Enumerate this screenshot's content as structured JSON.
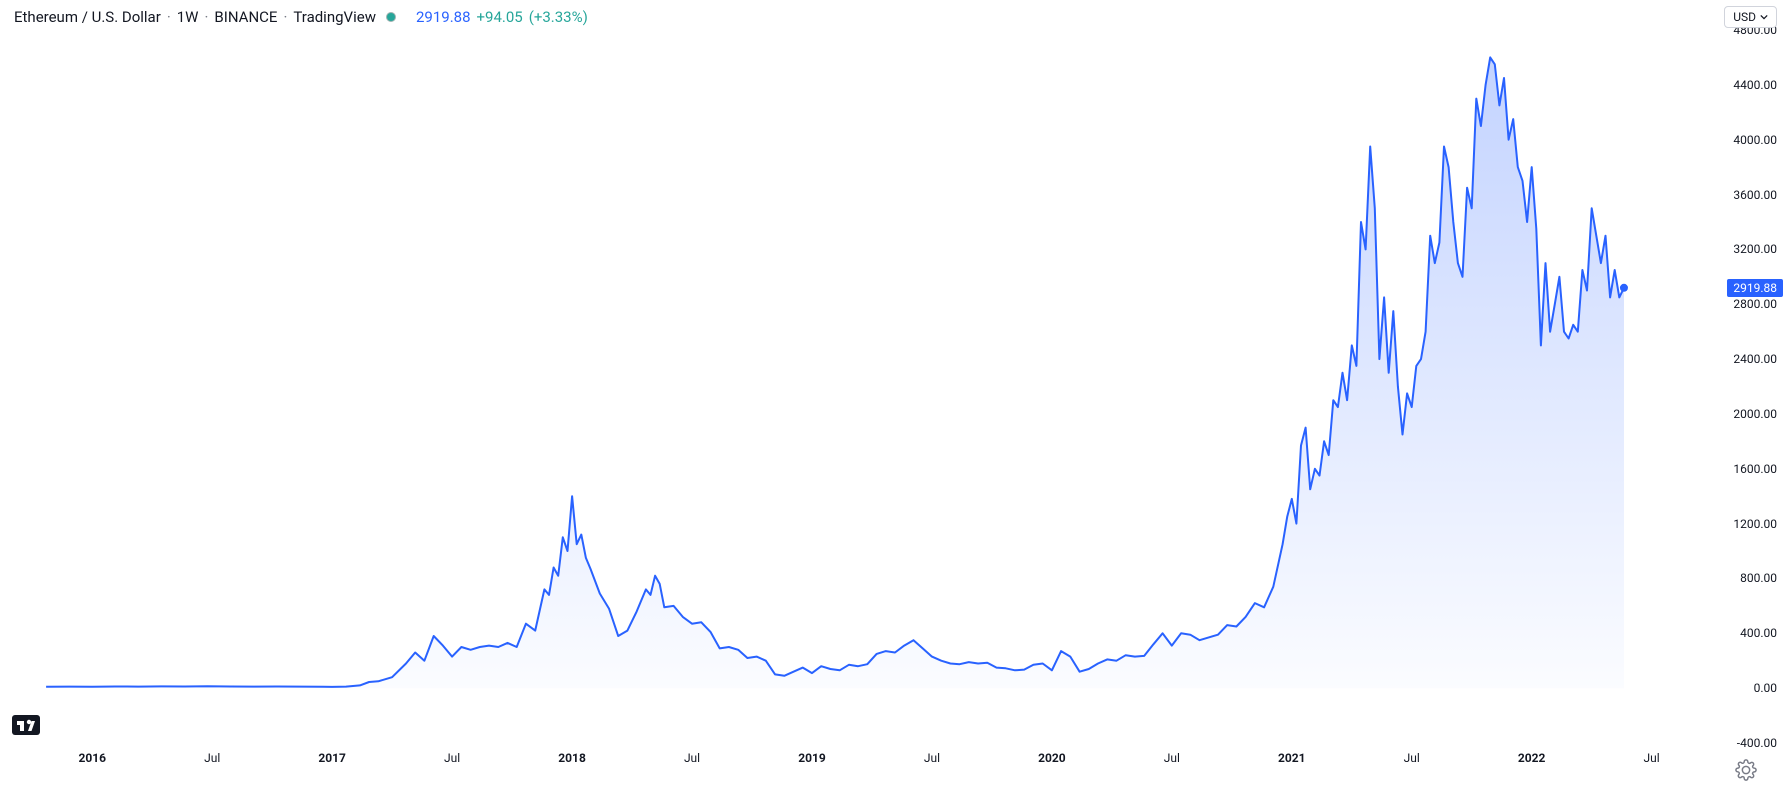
{
  "header": {
    "symbol": "Ethereum / U.S. Dollar",
    "interval": "1W",
    "exchange": "BINANCE",
    "provider": "TradingView",
    "price": "2919.88",
    "change_abs": "+94.05",
    "change_pct": "(+3.33%)"
  },
  "currency_selector": {
    "value": "USD"
  },
  "logo_text": "1⁄7",
  "chart": {
    "type": "area",
    "line_color": "#2962ff",
    "line_width": 2,
    "fill_top_color": "rgba(41,98,255,0.28)",
    "fill_bottom_color": "rgba(41,98,255,0.02)",
    "background_color": "#ffffff",
    "current_marker_color": "#2962ff",
    "current_price": 2919.88,
    "y_axis": {
      "min": -400,
      "max": 4800,
      "ticks": [
        4800.0,
        4400.0,
        4000.0,
        3600.0,
        3200.0,
        2800.0,
        2400.0,
        2000.0,
        1600.0,
        1200.0,
        800.0,
        400.0,
        0.0,
        -400.0
      ],
      "price_tag": "2919.88",
      "label_color": "#131722",
      "label_fontsize": 12
    },
    "x_axis": {
      "min": 0,
      "max": 370,
      "ticks": [
        {
          "pos": 20,
          "label": "2016",
          "bold": true
        },
        {
          "pos": 46,
          "label": "Jul",
          "bold": false
        },
        {
          "pos": 72,
          "label": "2017",
          "bold": true
        },
        {
          "pos": 98,
          "label": "Jul",
          "bold": false
        },
        {
          "pos": 124,
          "label": "2018",
          "bold": true
        },
        {
          "pos": 150,
          "label": "Jul",
          "bold": false
        },
        {
          "pos": 176,
          "label": "2019",
          "bold": true
        },
        {
          "pos": 202,
          "label": "Jul",
          "bold": false
        },
        {
          "pos": 228,
          "label": "2020",
          "bold": true
        },
        {
          "pos": 254,
          "label": "Jul",
          "bold": false
        },
        {
          "pos": 280,
          "label": "2021",
          "bold": true
        },
        {
          "pos": 306,
          "label": "Jul",
          "bold": false
        },
        {
          "pos": 332,
          "label": "2022",
          "bold": true
        },
        {
          "pos": 358,
          "label": "Jul",
          "bold": false
        }
      ],
      "label_color": "#131722",
      "label_fontsize": 12
    },
    "series": [
      {
        "x": 10,
        "y": 10
      },
      {
        "x": 15,
        "y": 11
      },
      {
        "x": 20,
        "y": 10
      },
      {
        "x": 25,
        "y": 12
      },
      {
        "x": 30,
        "y": 11
      },
      {
        "x": 35,
        "y": 13
      },
      {
        "x": 40,
        "y": 12
      },
      {
        "x": 45,
        "y": 14
      },
      {
        "x": 50,
        "y": 12
      },
      {
        "x": 55,
        "y": 11
      },
      {
        "x": 60,
        "y": 12
      },
      {
        "x": 65,
        "y": 11
      },
      {
        "x": 70,
        "y": 10
      },
      {
        "x": 72,
        "y": 9
      },
      {
        "x": 75,
        "y": 11
      },
      {
        "x": 78,
        "y": 20
      },
      {
        "x": 80,
        "y": 45
      },
      {
        "x": 82,
        "y": 50
      },
      {
        "x": 85,
        "y": 80
      },
      {
        "x": 88,
        "y": 180
      },
      {
        "x": 90,
        "y": 260
      },
      {
        "x": 92,
        "y": 200
      },
      {
        "x": 94,
        "y": 380
      },
      {
        "x": 96,
        "y": 310
      },
      {
        "x": 98,
        "y": 230
      },
      {
        "x": 100,
        "y": 300
      },
      {
        "x": 102,
        "y": 280
      },
      {
        "x": 104,
        "y": 300
      },
      {
        "x": 106,
        "y": 310
      },
      {
        "x": 108,
        "y": 300
      },
      {
        "x": 110,
        "y": 330
      },
      {
        "x": 112,
        "y": 300
      },
      {
        "x": 114,
        "y": 470
      },
      {
        "x": 116,
        "y": 420
      },
      {
        "x": 118,
        "y": 720
      },
      {
        "x": 119,
        "y": 680
      },
      {
        "x": 120,
        "y": 880
      },
      {
        "x": 121,
        "y": 820
      },
      {
        "x": 122,
        "y": 1100
      },
      {
        "x": 123,
        "y": 1000
      },
      {
        "x": 124,
        "y": 1400
      },
      {
        "x": 125,
        "y": 1050
      },
      {
        "x": 126,
        "y": 1120
      },
      {
        "x": 127,
        "y": 950
      },
      {
        "x": 128,
        "y": 870
      },
      {
        "x": 130,
        "y": 690
      },
      {
        "x": 132,
        "y": 580
      },
      {
        "x": 134,
        "y": 380
      },
      {
        "x": 136,
        "y": 420
      },
      {
        "x": 138,
        "y": 560
      },
      {
        "x": 140,
        "y": 720
      },
      {
        "x": 141,
        "y": 680
      },
      {
        "x": 142,
        "y": 820
      },
      {
        "x": 143,
        "y": 760
      },
      {
        "x": 144,
        "y": 590
      },
      {
        "x": 146,
        "y": 600
      },
      {
        "x": 148,
        "y": 520
      },
      {
        "x": 150,
        "y": 470
      },
      {
        "x": 152,
        "y": 480
      },
      {
        "x": 154,
        "y": 410
      },
      {
        "x": 156,
        "y": 290
      },
      {
        "x": 158,
        "y": 300
      },
      {
        "x": 160,
        "y": 280
      },
      {
        "x": 162,
        "y": 220
      },
      {
        "x": 164,
        "y": 230
      },
      {
        "x": 166,
        "y": 200
      },
      {
        "x": 168,
        "y": 100
      },
      {
        "x": 170,
        "y": 90
      },
      {
        "x": 172,
        "y": 120
      },
      {
        "x": 174,
        "y": 150
      },
      {
        "x": 176,
        "y": 110
      },
      {
        "x": 178,
        "y": 160
      },
      {
        "x": 180,
        "y": 140
      },
      {
        "x": 182,
        "y": 130
      },
      {
        "x": 184,
        "y": 170
      },
      {
        "x": 186,
        "y": 160
      },
      {
        "x": 188,
        "y": 175
      },
      {
        "x": 190,
        "y": 250
      },
      {
        "x": 192,
        "y": 270
      },
      {
        "x": 194,
        "y": 260
      },
      {
        "x": 196,
        "y": 310
      },
      {
        "x": 198,
        "y": 350
      },
      {
        "x": 200,
        "y": 290
      },
      {
        "x": 202,
        "y": 230
      },
      {
        "x": 204,
        "y": 200
      },
      {
        "x": 206,
        "y": 180
      },
      {
        "x": 208,
        "y": 175
      },
      {
        "x": 210,
        "y": 190
      },
      {
        "x": 212,
        "y": 180
      },
      {
        "x": 214,
        "y": 185
      },
      {
        "x": 216,
        "y": 150
      },
      {
        "x": 218,
        "y": 145
      },
      {
        "x": 220,
        "y": 130
      },
      {
        "x": 222,
        "y": 135
      },
      {
        "x": 224,
        "y": 170
      },
      {
        "x": 226,
        "y": 180
      },
      {
        "x": 228,
        "y": 130
      },
      {
        "x": 230,
        "y": 270
      },
      {
        "x": 232,
        "y": 230
      },
      {
        "x": 234,
        "y": 120
      },
      {
        "x": 236,
        "y": 140
      },
      {
        "x": 238,
        "y": 180
      },
      {
        "x": 240,
        "y": 210
      },
      {
        "x": 242,
        "y": 200
      },
      {
        "x": 244,
        "y": 240
      },
      {
        "x": 246,
        "y": 230
      },
      {
        "x": 248,
        "y": 235
      },
      {
        "x": 250,
        "y": 320
      },
      {
        "x": 252,
        "y": 400
      },
      {
        "x": 254,
        "y": 310
      },
      {
        "x": 256,
        "y": 400
      },
      {
        "x": 258,
        "y": 390
      },
      {
        "x": 260,
        "y": 350
      },
      {
        "x": 262,
        "y": 370
      },
      {
        "x": 264,
        "y": 390
      },
      {
        "x": 266,
        "y": 460
      },
      {
        "x": 268,
        "y": 450
      },
      {
        "x": 270,
        "y": 520
      },
      {
        "x": 272,
        "y": 620
      },
      {
        "x": 274,
        "y": 590
      },
      {
        "x": 276,
        "y": 740
      },
      {
        "x": 278,
        "y": 1050
      },
      {
        "x": 279,
        "y": 1250
      },
      {
        "x": 280,
        "y": 1380
      },
      {
        "x": 281,
        "y": 1200
      },
      {
        "x": 282,
        "y": 1770
      },
      {
        "x": 283,
        "y": 1900
      },
      {
        "x": 284,
        "y": 1450
      },
      {
        "x": 285,
        "y": 1600
      },
      {
        "x": 286,
        "y": 1550
      },
      {
        "x": 287,
        "y": 1800
      },
      {
        "x": 288,
        "y": 1700
      },
      {
        "x": 289,
        "y": 2100
      },
      {
        "x": 290,
        "y": 2050
      },
      {
        "x": 291,
        "y": 2300
      },
      {
        "x": 292,
        "y": 2100
      },
      {
        "x": 293,
        "y": 2500
      },
      {
        "x": 294,
        "y": 2350
      },
      {
        "x": 295,
        "y": 3400
      },
      {
        "x": 296,
        "y": 3200
      },
      {
        "x": 297,
        "y": 3950
      },
      {
        "x": 298,
        "y": 3500
      },
      {
        "x": 299,
        "y": 2400
      },
      {
        "x": 300,
        "y": 2850
      },
      {
        "x": 301,
        "y": 2300
      },
      {
        "x": 302,
        "y": 2750
      },
      {
        "x": 303,
        "y": 2200
      },
      {
        "x": 304,
        "y": 1850
      },
      {
        "x": 305,
        "y": 2150
      },
      {
        "x": 306,
        "y": 2050
      },
      {
        "x": 307,
        "y": 2350
      },
      {
        "x": 308,
        "y": 2400
      },
      {
        "x": 309,
        "y": 2600
      },
      {
        "x": 310,
        "y": 3300
      },
      {
        "x": 311,
        "y": 3100
      },
      {
        "x": 312,
        "y": 3250
      },
      {
        "x": 313,
        "y": 3950
      },
      {
        "x": 314,
        "y": 3800
      },
      {
        "x": 315,
        "y": 3400
      },
      {
        "x": 316,
        "y": 3100
      },
      {
        "x": 317,
        "y": 3000
      },
      {
        "x": 318,
        "y": 3650
      },
      {
        "x": 319,
        "y": 3500
      },
      {
        "x": 320,
        "y": 4300
      },
      {
        "x": 321,
        "y": 4100
      },
      {
        "x": 322,
        "y": 4400
      },
      {
        "x": 323,
        "y": 4600
      },
      {
        "x": 324,
        "y": 4550
      },
      {
        "x": 325,
        "y": 4250
      },
      {
        "x": 326,
        "y": 4450
      },
      {
        "x": 327,
        "y": 4000
      },
      {
        "x": 328,
        "y": 4150
      },
      {
        "x": 329,
        "y": 3800
      },
      {
        "x": 330,
        "y": 3700
      },
      {
        "x": 331,
        "y": 3400
      },
      {
        "x": 332,
        "y": 3800
      },
      {
        "x": 333,
        "y": 3350
      },
      {
        "x": 334,
        "y": 2500
      },
      {
        "x": 335,
        "y": 3100
      },
      {
        "x": 336,
        "y": 2600
      },
      {
        "x": 337,
        "y": 2800
      },
      {
        "x": 338,
        "y": 3000
      },
      {
        "x": 339,
        "y": 2600
      },
      {
        "x": 340,
        "y": 2550
      },
      {
        "x": 341,
        "y": 2650
      },
      {
        "x": 342,
        "y": 2600
      },
      {
        "x": 343,
        "y": 3050
      },
      {
        "x": 344,
        "y": 2900
      },
      {
        "x": 345,
        "y": 3500
      },
      {
        "x": 346,
        "y": 3300
      },
      {
        "x": 347,
        "y": 3100
      },
      {
        "x": 348,
        "y": 3300
      },
      {
        "x": 349,
        "y": 2850
      },
      {
        "x": 350,
        "y": 3050
      },
      {
        "x": 351,
        "y": 2850
      },
      {
        "x": 352,
        "y": 2919.88
      }
    ]
  }
}
